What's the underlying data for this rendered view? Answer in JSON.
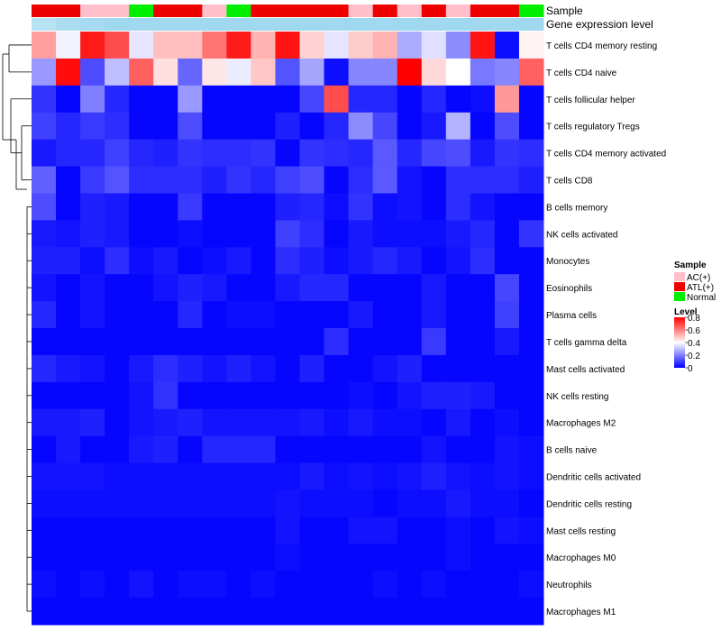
{
  "chart_data": {
    "type": "heatmap",
    "title": "",
    "xlabel": "",
    "ylabel": "",
    "annotation_track_labels": [
      "Sample",
      "Gene expression level"
    ],
    "value_range": [
      0,
      0.8
    ],
    "legend_sample": {
      "title": "Sample",
      "entries": [
        {
          "label": "AC(+)",
          "color": "#ffc0cb"
        },
        {
          "label": "ATL(+)",
          "color": "#ee0000"
        },
        {
          "label": "Normal",
          "color": "#00ee00"
        }
      ]
    },
    "legend_level": {
      "title": "Level",
      "ticks": [
        "0.8",
        "0.6",
        "0.4",
        "0.2",
        "0"
      ],
      "tick_values": [
        0.8,
        0.6,
        0.4,
        0.2,
        0
      ]
    },
    "colors": {
      "low": "#0000ff",
      "mid": "#ffffff",
      "high": "#ff0000",
      "expr_track": "#87ceeb"
    },
    "sample_groups": [
      "ATL(+)",
      "ATL(+)",
      "AC(+)",
      "AC(+)",
      "Normal",
      "ATL(+)",
      "ATL(+)",
      "AC(+)",
      "Normal",
      "ATL(+)",
      "ATL(+)",
      "ATL(+)",
      "ATL(+)",
      "AC(+)",
      "ATL(+)",
      "AC(+)",
      "ATL(+)",
      "AC(+)",
      "ATL(+)",
      "ATL(+)",
      "Normal"
    ],
    "expression_levels": [
      0.6,
      0.7,
      0.75,
      0.8,
      0.8,
      0.8,
      0.8,
      0.8,
      0.8,
      0.8,
      0.8,
      0.8,
      0.8,
      0.8,
      0.8,
      0.8,
      0.8,
      0.8,
      0.8,
      0.8,
      0.8
    ],
    "rows": [
      "T cells CD4 memory resting",
      "T cells CD4 naive",
      "T cells follicular helper",
      "T cells regulatory  Tregs",
      "T cells CD4 memory activated",
      "T cells CD8",
      "B cells memory",
      "NK cells activated",
      "Monocytes",
      "Eosinophils",
      "Plasma cells",
      "T cells gamma delta",
      "Mast cells activated",
      "NK cells resting",
      "Macrophages M2",
      "B cells naive",
      "Dendritic cells activated",
      "Dendritic cells resting",
      "Mast cells resting",
      "Macrophages M0",
      "Neutrophils",
      "Macrophages M1"
    ],
    "values": [
      [
        0.55,
        0.38,
        0.76,
        0.68,
        0.36,
        0.5,
        0.5,
        0.62,
        0.76,
        0.52,
        0.77,
        0.47,
        0.36,
        0.48,
        0.52,
        0.27,
        0.35,
        0.22,
        0.77,
        0.02,
        0.42
      ],
      [
        0.24,
        0.78,
        0.12,
        0.3,
        0.65,
        0.45,
        0.16,
        0.44,
        0.37,
        0.49,
        0.13,
        0.26,
        0.02,
        0.21,
        0.21,
        0.8,
        0.46,
        0.4,
        0.19,
        0.21,
        0.65
      ],
      [
        0.08,
        0.01,
        0.2,
        0.06,
        0.01,
        0.01,
        0.24,
        0.01,
        0.01,
        0.01,
        0.01,
        0.11,
        0.68,
        0.06,
        0.06,
        0.01,
        0.06,
        0.01,
        0.02,
        0.56,
        0.01
      ],
      [
        0.1,
        0.06,
        0.09,
        0.07,
        0.01,
        0.01,
        0.12,
        0.01,
        0.01,
        0.01,
        0.05,
        0.01,
        0.06,
        0.22,
        0.11,
        0.01,
        0.04,
        0.28,
        0.01,
        0.12,
        0.01
      ],
      [
        0.04,
        0.06,
        0.06,
        0.1,
        0.06,
        0.05,
        0.08,
        0.07,
        0.07,
        0.08,
        0.01,
        0.08,
        0.07,
        0.06,
        0.14,
        0.06,
        0.11,
        0.12,
        0.04,
        0.08,
        0.07
      ],
      [
        0.15,
        0.01,
        0.09,
        0.13,
        0.07,
        0.07,
        0.07,
        0.05,
        0.08,
        0.06,
        0.1,
        0.12,
        0.01,
        0.07,
        0.14,
        0.03,
        0.01,
        0.07,
        0.07,
        0.07,
        0.05
      ],
      [
        0.12,
        0.01,
        0.05,
        0.04,
        0.01,
        0.01,
        0.09,
        0.01,
        0.01,
        0.01,
        0.05,
        0.06,
        0.02,
        0.08,
        0.02,
        0.03,
        0.01,
        0.07,
        0.03,
        0.01,
        0.01
      ],
      [
        0.04,
        0.03,
        0.05,
        0.04,
        0.01,
        0.01,
        0.02,
        0.01,
        0.01,
        0.01,
        0.1,
        0.07,
        0.01,
        0.04,
        0.02,
        0.02,
        0.02,
        0.04,
        0.06,
        0.01,
        0.08
      ],
      [
        0.05,
        0.05,
        0.02,
        0.07,
        0.02,
        0.04,
        0.01,
        0.02,
        0.04,
        0.01,
        0.07,
        0.05,
        0.02,
        0.04,
        0.06,
        0.04,
        0.01,
        0.03,
        0.07,
        0.01,
        0.01
      ],
      [
        0.03,
        0.01,
        0.03,
        0.01,
        0.01,
        0.03,
        0.05,
        0.04,
        0.01,
        0.01,
        0.04,
        0.06,
        0.06,
        0.01,
        0.01,
        0.01,
        0.04,
        0.01,
        0.01,
        0.11,
        0.01
      ],
      [
        0.06,
        0.01,
        0.03,
        0.01,
        0.01,
        0.01,
        0.06,
        0.01,
        0.02,
        0.02,
        0.01,
        0.01,
        0.01,
        0.04,
        0.01,
        0.01,
        0.04,
        0.01,
        0.01,
        0.1,
        0.01
      ],
      [
        0.01,
        0.01,
        0.01,
        0.01,
        0.01,
        0.01,
        0.01,
        0.01,
        0.01,
        0.01,
        0.01,
        0.01,
        0.07,
        0.01,
        0.01,
        0.01,
        0.09,
        0.01,
        0.01,
        0.04,
        0.01
      ],
      [
        0.06,
        0.04,
        0.03,
        0.01,
        0.04,
        0.07,
        0.05,
        0.03,
        0.05,
        0.03,
        0.01,
        0.05,
        0.01,
        0.01,
        0.03,
        0.05,
        0.01,
        0.01,
        0.01,
        0.01,
        0.01
      ],
      [
        0.01,
        0.01,
        0.01,
        0.01,
        0.03,
        0.08,
        0.01,
        0.01,
        0.01,
        0.01,
        0.01,
        0.01,
        0.01,
        0.02,
        0.01,
        0.03,
        0.05,
        0.05,
        0.04,
        0.01,
        0.01
      ],
      [
        0.04,
        0.04,
        0.05,
        0.01,
        0.03,
        0.04,
        0.05,
        0.03,
        0.03,
        0.03,
        0.03,
        0.04,
        0.02,
        0.04,
        0.02,
        0.02,
        0.01,
        0.04,
        0.01,
        0.02,
        0.01
      ],
      [
        0.01,
        0.04,
        0.01,
        0.01,
        0.04,
        0.05,
        0.01,
        0.06,
        0.06,
        0.06,
        0.01,
        0.01,
        0.01,
        0.01,
        0.01,
        0.01,
        0.03,
        0.01,
        0.01,
        0.03,
        0.02
      ],
      [
        0.03,
        0.03,
        0.03,
        0.02,
        0.02,
        0.02,
        0.02,
        0.02,
        0.02,
        0.02,
        0.02,
        0.04,
        0.02,
        0.03,
        0.02,
        0.03,
        0.05,
        0.03,
        0.02,
        0.03,
        0.02
      ],
      [
        0.02,
        0.02,
        0.02,
        0.02,
        0.02,
        0.02,
        0.02,
        0.02,
        0.02,
        0.02,
        0.03,
        0.02,
        0.02,
        0.02,
        0.01,
        0.02,
        0.02,
        0.04,
        0.02,
        0.02,
        0.01
      ],
      [
        0.01,
        0.01,
        0.01,
        0.01,
        0.01,
        0.01,
        0.01,
        0.01,
        0.01,
        0.01,
        0.03,
        0.01,
        0.01,
        0.03,
        0.03,
        0.01,
        0.01,
        0.02,
        0.01,
        0.03,
        0.02
      ],
      [
        0.01,
        0.01,
        0.01,
        0.01,
        0.01,
        0.01,
        0.01,
        0.01,
        0.01,
        0.01,
        0.02,
        0.01,
        0.01,
        0.01,
        0.01,
        0.01,
        0.01,
        0.02,
        0.01,
        0.01,
        0.01
      ],
      [
        0.02,
        0.01,
        0.02,
        0.01,
        0.03,
        0.01,
        0.02,
        0.02,
        0.01,
        0.02,
        0.01,
        0.01,
        0.01,
        0.01,
        0.02,
        0.01,
        0.02,
        0.01,
        0.01,
        0.01,
        0.02
      ],
      [
        0.01,
        0.01,
        0.01,
        0.01,
        0.01,
        0.01,
        0.01,
        0.01,
        0.01,
        0.01,
        0.01,
        0.01,
        0.01,
        0.01,
        0.01,
        0.01,
        0.01,
        0.01,
        0.01,
        0.01,
        0.01
      ]
    ],
    "dendrogram": "hierarchical clustering of rows",
    "legend_position": "right"
  }
}
